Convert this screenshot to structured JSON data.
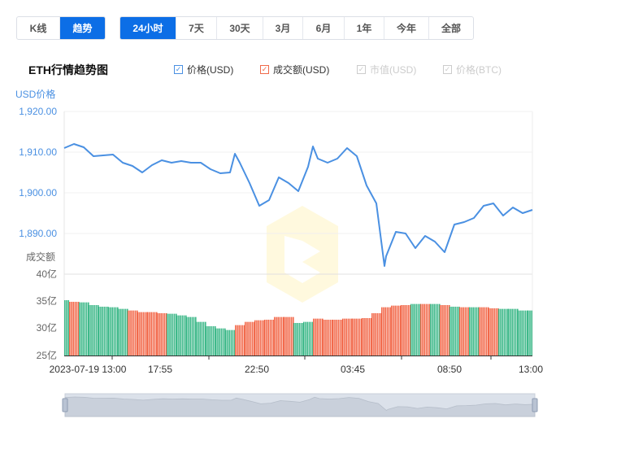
{
  "tabs_type": [
    {
      "label": "K线",
      "active": false
    },
    {
      "label": "趋势",
      "active": true
    }
  ],
  "tabs_range": [
    {
      "label": "24小时",
      "active": true
    },
    {
      "label": "7天"
    },
    {
      "label": "30天"
    },
    {
      "label": "3月"
    },
    {
      "label": "6月"
    },
    {
      "label": "1年"
    },
    {
      "label": "今年"
    },
    {
      "label": "全部"
    }
  ],
  "chart_title": "ETH行情趋势图",
  "legend": [
    {
      "label": "价格(USD)",
      "checked": true,
      "color": "#4a90e2"
    },
    {
      "label": "成交额(USD)",
      "checked": true,
      "color": "#f06a4a"
    },
    {
      "label": "市值(USD)",
      "checked": false,
      "color": "#cccccc"
    },
    {
      "label": "价格(BTC)",
      "checked": false,
      "color": "#cccccc"
    }
  ],
  "colors": {
    "price": "#4a90e2",
    "up": "#f26a4c",
    "down": "#3fb98a",
    "accent": "#0c6ee6"
  },
  "chart_data": {
    "type": "line+bar",
    "price_axis": {
      "label": "USD价格",
      "ticks": [
        "1,920.00",
        "1,910.00",
        "1,900.00",
        "1,890.00"
      ],
      "range": [
        1880,
        1920
      ]
    },
    "volume_axis": {
      "label": "成交额",
      "ticks": [
        "40亿",
        "35亿",
        "30亿",
        "25亿"
      ],
      "range": [
        25,
        40
      ],
      "unit": "亿"
    },
    "x_ticks": [
      "2023-07-19 13:00",
      "17:55",
      "22:50",
      "03:45",
      "08:50",
      "13:00"
    ],
    "price": [
      [
        "13:00",
        1911.0
      ],
      [
        "13:30",
        1912.0
      ],
      [
        "14:00",
        1911.2
      ],
      [
        "14:30",
        1909.0
      ],
      [
        "15:00",
        1909.2
      ],
      [
        "15:30",
        1909.4
      ],
      [
        "16:00",
        1907.4
      ],
      [
        "16:30",
        1906.6
      ],
      [
        "17:00",
        1905.0
      ],
      [
        "17:30",
        1906.8
      ],
      [
        "18:00",
        1908.0
      ],
      [
        "18:30",
        1907.4
      ],
      [
        "19:00",
        1907.8
      ],
      [
        "19:30",
        1907.4
      ],
      [
        "20:00",
        1907.4
      ],
      [
        "20:30",
        1905.8
      ],
      [
        "21:00",
        1904.8
      ],
      [
        "21:30",
        1905.0
      ],
      [
        "21:45",
        1909.6
      ],
      [
        "22:00",
        1907.4
      ],
      [
        "22:30",
        1902.4
      ],
      [
        "23:00",
        1896.8
      ],
      [
        "23:30",
        1898.2
      ],
      [
        "00:00",
        1903.8
      ],
      [
        "00:30",
        1902.4
      ],
      [
        "01:00",
        1900.4
      ],
      [
        "01:30",
        1906.4
      ],
      [
        "01:45",
        1911.4
      ],
      [
        "02:00",
        1908.4
      ],
      [
        "02:30",
        1907.4
      ],
      [
        "03:00",
        1908.4
      ],
      [
        "03:30",
        1911.0
      ],
      [
        "04:00",
        1909.0
      ],
      [
        "04:30",
        1901.8
      ],
      [
        "05:00",
        1897.4
      ],
      [
        "05:25",
        1882.0
      ],
      [
        "05:30",
        1884.4
      ],
      [
        "06:00",
        1890.4
      ],
      [
        "06:30",
        1890.0
      ],
      [
        "07:00",
        1886.4
      ],
      [
        "07:30",
        1889.4
      ],
      [
        "08:00",
        1888.0
      ],
      [
        "08:30",
        1885.4
      ],
      [
        "09:00",
        1892.2
      ],
      [
        "09:30",
        1892.8
      ],
      [
        "10:00",
        1893.8
      ],
      [
        "10:30",
        1896.8
      ],
      [
        "11:00",
        1897.4
      ],
      [
        "11:30",
        1894.4
      ],
      [
        "12:00",
        1896.4
      ],
      [
        "12:30",
        1895.0
      ],
      [
        "13:00",
        1895.8
      ]
    ],
    "volume": [
      35.2,
      34.9,
      34.8,
      34.3,
      34.0,
      33.9,
      33.6,
      33.3,
      33.0,
      33.0,
      32.8,
      32.7,
      32.4,
      32.1,
      31.2,
      30.4,
      30.0,
      29.7,
      30.6,
      31.2,
      31.5,
      31.6,
      32.1,
      32.1,
      31.0,
      31.2,
      31.8,
      31.6,
      31.6,
      31.8,
      31.8,
      31.9,
      32.8,
      33.9,
      34.2,
      34.3,
      34.5,
      34.5,
      34.5,
      34.3,
      34.0,
      33.9,
      33.9,
      33.9,
      33.7,
      33.6,
      33.6,
      33.3,
      33.3
    ],
    "volume_color": [
      "down",
      "red",
      "down",
      "down",
      "down",
      "down",
      "down",
      "up",
      "up",
      "up",
      "up",
      "down",
      "down",
      "down",
      "down",
      "down",
      "down",
      "down",
      "up",
      "up",
      "up",
      "up",
      "up",
      "up",
      "down",
      "down",
      "up",
      "up",
      "up",
      "up",
      "up",
      "up",
      "up",
      "up",
      "up",
      "up",
      "down",
      "up",
      "down",
      "up",
      "down",
      "up",
      "down",
      "up",
      "up",
      "down",
      "down",
      "down",
      "down"
    ]
  }
}
